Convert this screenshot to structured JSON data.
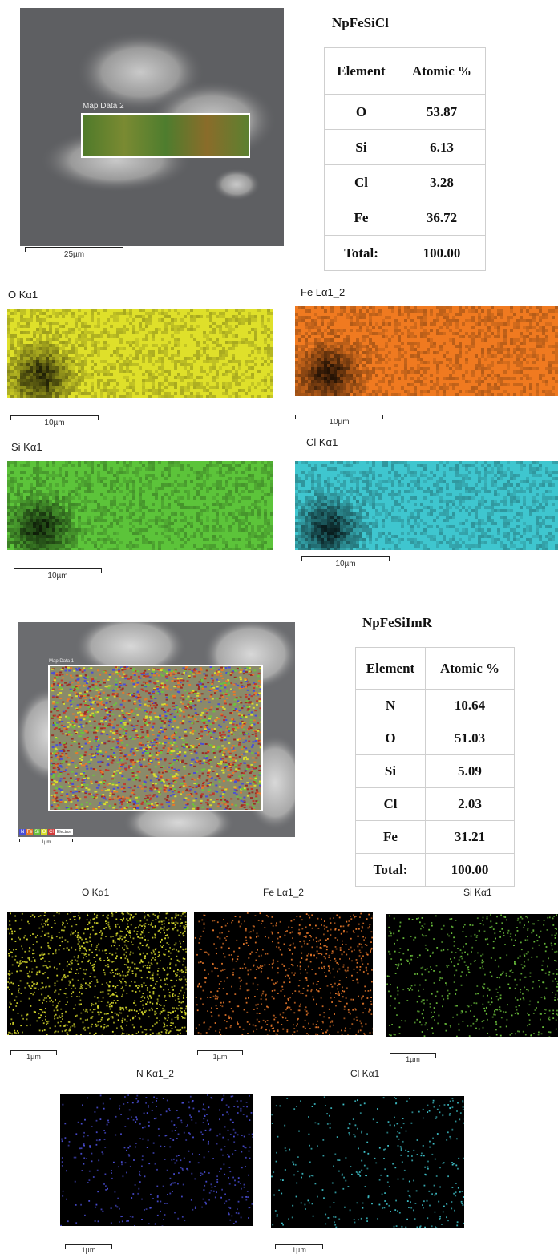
{
  "panel1": {
    "title": "NpFeSiCl",
    "sem_tag": "Map Data 2",
    "sem_scale": "25µm",
    "table_headers": [
      "Element",
      "Atomic %"
    ],
    "rows": [
      {
        "element": "O",
        "value": "53.87"
      },
      {
        "element": "Si",
        "value": "6.13"
      },
      {
        "element": "Cl",
        "value": "3.28"
      },
      {
        "element": "Fe",
        "value": "36.72"
      },
      {
        "element": "Total:",
        "value": "100.00"
      }
    ],
    "maps": [
      {
        "label": "O Kα1",
        "scale": "10µm",
        "color": "#dfe02a"
      },
      {
        "label": "Fe Lα1_2",
        "scale": "10µm",
        "color": "#f07a20"
      },
      {
        "label": "Si Kα1",
        "scale": "10µm",
        "color": "#5cc43a"
      },
      {
        "label": "Cl Kα1",
        "scale": "10µm",
        "color": "#3fc6cf"
      }
    ]
  },
  "panel2": {
    "title": "NpFeSiImR",
    "sem_tag": "Map Data 1",
    "sem_scale": "1µm",
    "legend": [
      "N",
      "Fe",
      "Si",
      "O",
      "Cl",
      "Electron"
    ],
    "table_headers": [
      "Element",
      "Atomic %"
    ],
    "rows": [
      {
        "element": "N",
        "value": "10.64"
      },
      {
        "element": "O",
        "value": "51.03"
      },
      {
        "element": "Si",
        "value": "5.09"
      },
      {
        "element": "Cl",
        "value": "2.03"
      },
      {
        "element": "Fe",
        "value": "31.21"
      },
      {
        "element": "Total:",
        "value": "100.00"
      }
    ],
    "maps": [
      {
        "label": "O Kα1",
        "scale": "1µm",
        "color": "#d9dc2c"
      },
      {
        "label": "Fe Lα1_2",
        "scale": "1µm",
        "color": "#e8782a"
      },
      {
        "label": "Si Kα1",
        "scale": "1µm",
        "color": "#6cc23c"
      },
      {
        "label": "N Kα1_2",
        "scale": "1µm",
        "color": "#4a4ed6"
      },
      {
        "label": "Cl Kα1",
        "scale": "1µm",
        "color": "#3fc4cc"
      }
    ]
  }
}
